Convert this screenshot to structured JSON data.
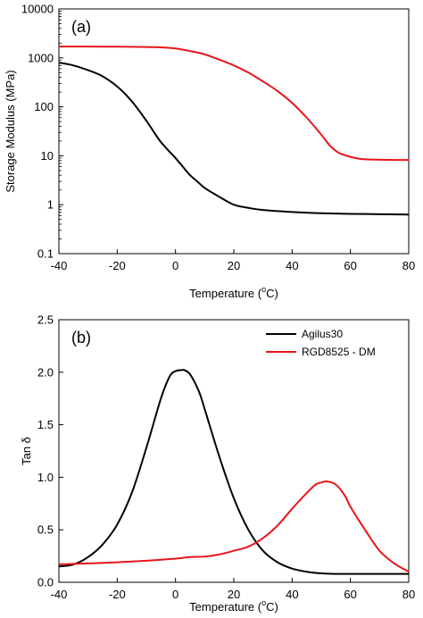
{
  "chart_data": [
    {
      "type": "line",
      "panel_label": "(a)",
      "xlabel": "Temperature (",
      "xlabel_sup": "o",
      "xlabel_unit": "C)",
      "ylabel": "Storage Modulus (MPa)",
      "xlim": [
        -40,
        80
      ],
      "ylim": [
        0.1,
        10000
      ],
      "yscale": "log",
      "xticks": [
        -40,
        -20,
        0,
        20,
        40,
        60,
        80
      ],
      "xtick_labels": [
        "-40",
        "-20",
        "0",
        "20",
        "40",
        "60",
        "80"
      ],
      "yticks": [
        0.1,
        1,
        10,
        100,
        1000,
        10000
      ],
      "ytick_labels": [
        "0.1",
        "1",
        "10",
        "100",
        "1000",
        "10000"
      ],
      "grid": false,
      "series": [
        {
          "color": "#000000",
          "x": [
            -40,
            -35,
            -30,
            -25,
            -20,
            -15,
            -10,
            -7,
            -5,
            -2,
            0,
            3,
            5,
            8,
            10,
            15,
            20,
            25,
            30,
            40,
            50,
            60,
            70,
            80
          ],
          "y": [
            800,
            700,
            560,
            420,
            260,
            130,
            52,
            28,
            19,
            12,
            9,
            5.5,
            4.0,
            2.8,
            2.2,
            1.45,
            1.0,
            0.86,
            0.78,
            0.71,
            0.67,
            0.65,
            0.64,
            0.63
          ]
        },
        {
          "color": "#e8151b",
          "x": [
            -40,
            -30,
            -20,
            -10,
            -5,
            0,
            5,
            10,
            15,
            20,
            25,
            30,
            35,
            40,
            45,
            50,
            53,
            56,
            60,
            63,
            66,
            70,
            75,
            80
          ],
          "y": [
            1700,
            1700,
            1690,
            1670,
            1640,
            1560,
            1380,
            1180,
            920,
            700,
            500,
            330,
            210,
            120,
            60,
            27,
            16,
            11.5,
            9.5,
            8.7,
            8.4,
            8.3,
            8.2,
            8.2
          ]
        }
      ]
    },
    {
      "type": "line",
      "panel_label": "(b)",
      "xlabel": "Temperature (",
      "xlabel_sup": "o",
      "xlabel_unit": "C)",
      "ylabel": "Tan δ",
      "xlim": [
        -40,
        80
      ],
      "ylim": [
        0.0,
        2.5
      ],
      "xticks": [
        -40,
        -20,
        0,
        20,
        40,
        60,
        80
      ],
      "xtick_labels": [
        "-40",
        "-20",
        "0",
        "20",
        "40",
        "60",
        "80"
      ],
      "yticks": [
        0.0,
        0.5,
        1.0,
        1.5,
        2.0,
        2.5
      ],
      "ytick_labels": [
        "0.0",
        "0.5",
        "1.0",
        "1.5",
        "2.0",
        "2.5"
      ],
      "grid": false,
      "legend_position": "top-right",
      "series": [
        {
          "name": "Agilus30",
          "color": "#000000",
          "x": [
            -40,
            -35,
            -30,
            -25,
            -20,
            -15,
            -10,
            -5,
            -2,
            0,
            2,
            3,
            5,
            8,
            10,
            15,
            20,
            25,
            30,
            35,
            40,
            45,
            50,
            55,
            60,
            70,
            80
          ],
          "y": [
            0.15,
            0.17,
            0.24,
            0.36,
            0.55,
            0.85,
            1.28,
            1.75,
            1.96,
            2.01,
            2.02,
            2.02,
            1.98,
            1.82,
            1.65,
            1.2,
            0.8,
            0.5,
            0.3,
            0.19,
            0.13,
            0.1,
            0.085,
            0.08,
            0.08,
            0.08,
            0.08
          ]
        },
        {
          "name": "RGD8525 - DM",
          "color": "#e8151b",
          "x": [
            -40,
            -30,
            -20,
            -10,
            0,
            5,
            10,
            15,
            20,
            25,
            30,
            35,
            40,
            45,
            48,
            50,
            52,
            55,
            58,
            60,
            65,
            70,
            75,
            80
          ],
          "y": [
            0.17,
            0.18,
            0.19,
            0.205,
            0.225,
            0.24,
            0.245,
            0.265,
            0.3,
            0.34,
            0.42,
            0.54,
            0.7,
            0.85,
            0.93,
            0.95,
            0.96,
            0.93,
            0.83,
            0.72,
            0.5,
            0.3,
            0.18,
            0.1
          ]
        }
      ]
    }
  ]
}
